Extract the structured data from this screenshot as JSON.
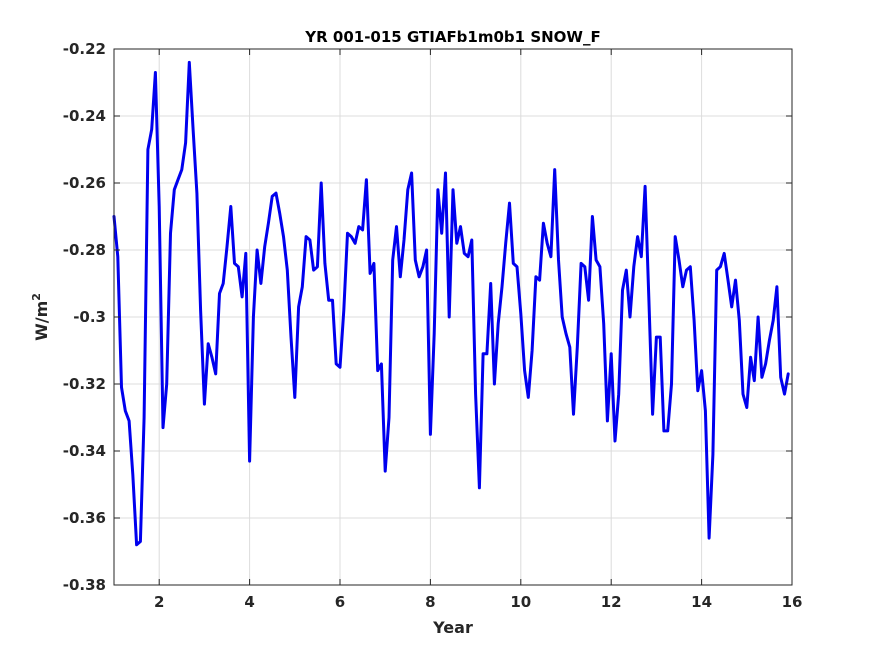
{
  "chart_data": {
    "type": "line",
    "title": "YR 001-015 GTIAFb1m0b1 SNOW_F",
    "xlabel": "Year",
    "ylabel": "W/m",
    "ylabel_sup": "2",
    "xlim": [
      1,
      16
    ],
    "ylim": [
      -0.38,
      -0.22
    ],
    "xticks": [
      2,
      4,
      6,
      8,
      10,
      12,
      14,
      16
    ],
    "xtick_labels": [
      "2",
      "4",
      "6",
      "8",
      "10",
      "12",
      "14",
      "16"
    ],
    "yticks": [
      -0.38,
      -0.36,
      -0.34,
      -0.32,
      -0.3,
      -0.28,
      -0.26,
      -0.24,
      -0.22
    ],
    "ytick_labels": [
      "-0.38",
      "-0.36",
      "-0.34",
      "-0.32",
      "-0.3",
      "-0.28",
      "-0.26",
      "-0.24",
      "-0.22"
    ],
    "grid": true,
    "line_color": "#0000ee",
    "series": [
      {
        "x": [
          1.0,
          1.083,
          1.167,
          1.25,
          1.333,
          1.417,
          1.5,
          1.583,
          1.667,
          1.75,
          1.833,
          1.917,
          2.0,
          2.083,
          2.167,
          2.25,
          2.333,
          2.417,
          2.5,
          2.583,
          2.667,
          2.75,
          2.833,
          2.917,
          3.0,
          3.083,
          3.167,
          3.25,
          3.333,
          3.417,
          3.5,
          3.583,
          3.667,
          3.75,
          3.833,
          3.917,
          4.0,
          4.083,
          4.167,
          4.25,
          4.333,
          4.417,
          4.5,
          4.583,
          4.667,
          4.75,
          4.833,
          4.917,
          5.0,
          5.083,
          5.167,
          5.25,
          5.333,
          5.417,
          5.5,
          5.583,
          5.667,
          5.75,
          5.833,
          5.917,
          6.0,
          6.083,
          6.167,
          6.25,
          6.333,
          6.417,
          6.5,
          6.583,
          6.667,
          6.75,
          6.833,
          6.917,
          7.0,
          7.083,
          7.167,
          7.25,
          7.333,
          7.417,
          7.5,
          7.583,
          7.667,
          7.75,
          7.833,
          7.917,
          8.0,
          8.083,
          8.167,
          8.25,
          8.333,
          8.417,
          8.5,
          8.583,
          8.667,
          8.75,
          8.833,
          8.917,
          9.0,
          9.083,
          9.167,
          9.25,
          9.333,
          9.417,
          9.5,
          9.583,
          9.667,
          9.75,
          9.833,
          9.917,
          10.0,
          10.083,
          10.167,
          10.25,
          10.333,
          10.417,
          10.5,
          10.583,
          10.667,
          10.75,
          10.833,
          10.917,
          11.0,
          11.083,
          11.167,
          11.25,
          11.333,
          11.417,
          11.5,
          11.583,
          11.667,
          11.75,
          11.833,
          11.917,
          12.0,
          12.083,
          12.167,
          12.25,
          12.333,
          12.417,
          12.5,
          12.583,
          12.667,
          12.75,
          12.833,
          12.917,
          13.0,
          13.083,
          13.167,
          13.25,
          13.333,
          13.417,
          13.5,
          13.583,
          13.667,
          13.75,
          13.833,
          13.917,
          14.0,
          14.083,
          14.167,
          14.25,
          14.333,
          14.417,
          14.5,
          14.583,
          14.667,
          14.75,
          14.833,
          14.917,
          15.0,
          15.083,
          15.167,
          15.25,
          15.333,
          15.417,
          15.5,
          15.583,
          15.667,
          15.75,
          15.833,
          15.917
        ],
        "y": [
          -0.27,
          -0.282,
          -0.321,
          -0.328,
          -0.331,
          -0.347,
          -0.368,
          -0.367,
          -0.33,
          -0.25,
          -0.244,
          -0.227,
          -0.267,
          -0.333,
          -0.32,
          -0.275,
          -0.262,
          -0.259,
          -0.256,
          -0.248,
          -0.224,
          -0.244,
          -0.263,
          -0.298,
          -0.326,
          -0.308,
          -0.312,
          -0.317,
          -0.293,
          -0.29,
          -0.279,
          -0.267,
          -0.284,
          -0.285,
          -0.294,
          -0.281,
          -0.343,
          -0.3,
          -0.28,
          -0.29,
          -0.279,
          -0.272,
          -0.264,
          -0.263,
          -0.269,
          -0.276,
          -0.286,
          -0.306,
          -0.324,
          -0.297,
          -0.291,
          -0.276,
          -0.277,
          -0.286,
          -0.285,
          -0.26,
          -0.284,
          -0.295,
          -0.295,
          -0.314,
          -0.315,
          -0.298,
          -0.275,
          -0.276,
          -0.278,
          -0.273,
          -0.274,
          -0.259,
          -0.287,
          -0.284,
          -0.316,
          -0.314,
          -0.346,
          -0.33,
          -0.283,
          -0.273,
          -0.288,
          -0.277,
          -0.262,
          -0.257,
          -0.283,
          -0.288,
          -0.285,
          -0.28,
          -0.335,
          -0.305,
          -0.262,
          -0.275,
          -0.257,
          -0.3,
          -0.262,
          -0.278,
          -0.273,
          -0.281,
          -0.282,
          -0.277,
          -0.323,
          -0.351,
          -0.311,
          -0.311,
          -0.29,
          -0.32,
          -0.302,
          -0.291,
          -0.278,
          -0.266,
          -0.284,
          -0.285,
          -0.299,
          -0.316,
          -0.324,
          -0.31,
          -0.288,
          -0.289,
          -0.272,
          -0.278,
          -0.282,
          -0.256,
          -0.283,
          -0.3,
          -0.305,
          -0.309,
          -0.329,
          -0.309,
          -0.284,
          -0.285,
          -0.295,
          -0.27,
          -0.283,
          -0.285,
          -0.302,
          -0.331,
          -0.311,
          -0.337,
          -0.323,
          -0.292,
          -0.286,
          -0.3,
          -0.285,
          -0.276,
          -0.282,
          -0.261,
          -0.295,
          -0.329,
          -0.306,
          -0.306,
          -0.334,
          -0.334,
          -0.32,
          -0.276,
          -0.283,
          -0.291,
          -0.286,
          -0.285,
          -0.301,
          -0.322,
          -0.316,
          -0.328,
          -0.366,
          -0.341,
          -0.286,
          -0.285,
          -0.281,
          -0.289,
          -0.297,
          -0.289,
          -0.301,
          -0.323,
          -0.327,
          -0.312,
          -0.319,
          -0.3,
          -0.318,
          -0.314,
          -0.307,
          -0.301,
          -0.291,
          -0.318,
          -0.323,
          -0.317
        ]
      }
    ]
  }
}
